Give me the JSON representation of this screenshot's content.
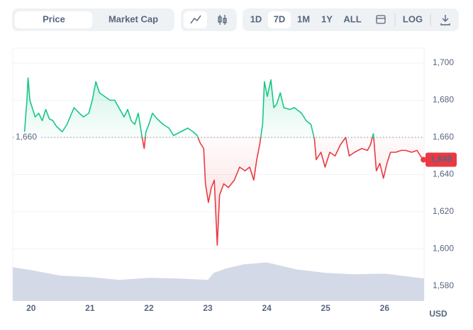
{
  "toolbar": {
    "tabs": [
      "Price",
      "Market Cap"
    ],
    "ranges": [
      "1D",
      "7D",
      "1M",
      "1Y",
      "ALL"
    ],
    "log": "LOG"
  },
  "chart_data": {
    "type": "line",
    "up_color": "#16c784",
    "down_color": "#ea3943",
    "baseline": {
      "value": 1660,
      "label": "1,660"
    },
    "current_price": {
      "value": 1648,
      "label": "1,648"
    },
    "y_unit": "USD",
    "xlim": [
      19.69,
      26.67
    ],
    "xticks": [
      20,
      21,
      22,
      23,
      24,
      25,
      26
    ],
    "ylim": [
      1572,
      1708
    ],
    "yticks": [
      {
        "value": 1580,
        "label": "1,580"
      },
      {
        "value": 1600,
        "label": "1,600"
      },
      {
        "value": 1620,
        "label": "1,620"
      },
      {
        "value": 1640,
        "label": "1,640"
      },
      {
        "value": 1660,
        "label": "1,660"
      },
      {
        "value": 1680,
        "label": "1,680"
      },
      {
        "value": 1700,
        "label": "1,700"
      }
    ],
    "grid": true,
    "x": [
      19.89,
      19.93,
      19.95,
      19.98,
      20.01,
      20.07,
      20.13,
      20.19,
      20.25,
      20.31,
      20.37,
      20.43,
      20.53,
      20.61,
      20.73,
      20.82,
      20.89,
      20.98,
      21.04,
      21.1,
      21.16,
      21.25,
      21.34,
      21.42,
      21.49,
      21.58,
      21.64,
      21.7,
      21.76,
      21.82,
      21.88,
      21.92,
      21.95,
      22.0,
      22.06,
      22.14,
      22.24,
      22.34,
      22.42,
      22.54,
      22.66,
      22.75,
      22.82,
      22.87,
      22.93,
      22.96,
      23.01,
      23.06,
      23.11,
      23.16,
      23.2,
      23.27,
      23.35,
      23.45,
      23.54,
      23.63,
      23.71,
      23.78,
      23.83,
      23.88,
      23.93,
      23.96,
      24.01,
      24.07,
      24.12,
      24.17,
      24.23,
      24.29,
      24.39,
      24.47,
      24.59,
      24.67,
      24.75,
      24.81,
      24.84,
      24.92,
      24.99,
      25.07,
      25.16,
      25.25,
      25.34,
      25.4,
      25.49,
      25.61,
      25.71,
      25.76,
      25.81,
      25.86,
      25.92,
      25.98,
      26.04,
      26.1,
      26.19,
      26.28,
      26.36,
      26.46,
      26.55,
      26.61,
      26.66
    ],
    "values": [
      1663,
      1680,
      1692,
      1680,
      1677,
      1671,
      1673,
      1669,
      1675,
      1670,
      1669,
      1666,
      1663,
      1667,
      1676,
      1673,
      1671,
      1673,
      1680,
      1690,
      1684,
      1682,
      1680,
      1680,
      1676,
      1671,
      1675,
      1669,
      1667,
      1673,
      1661,
      1654,
      1663,
      1667,
      1673,
      1670,
      1667,
      1665,
      1661,
      1663,
      1665,
      1663,
      1661,
      1657,
      1654,
      1635,
      1625,
      1633,
      1637,
      1602,
      1629,
      1635,
      1633,
      1637,
      1644,
      1642,
      1644,
      1637,
      1648,
      1656,
      1667,
      1690,
      1682,
      1691,
      1676,
      1678,
      1684,
      1676,
      1675,
      1676,
      1673,
      1669,
      1667,
      1659,
      1648,
      1652,
      1644,
      1652,
      1650,
      1656,
      1660,
      1650,
      1652,
      1654,
      1653,
      1656,
      1662,
      1642,
      1646,
      1638,
      1646,
      1652,
      1652,
      1653,
      1653,
      1652,
      1653,
      1650,
      1648
    ],
    "volume": {
      "color": "#d3d9e6",
      "y2lim": [
        0,
        360
      ],
      "x": [
        19.69,
        20.0,
        20.5,
        21.0,
        21.5,
        22.0,
        22.5,
        23.0,
        23.1,
        23.3,
        23.6,
        24.0,
        24.5,
        25.0,
        25.5,
        26.0,
        26.67
      ],
      "values": [
        48,
        44,
        36,
        34,
        30,
        33,
        32,
        30,
        40,
        46,
        52,
        55,
        45,
        40,
        38,
        39,
        32
      ]
    }
  }
}
